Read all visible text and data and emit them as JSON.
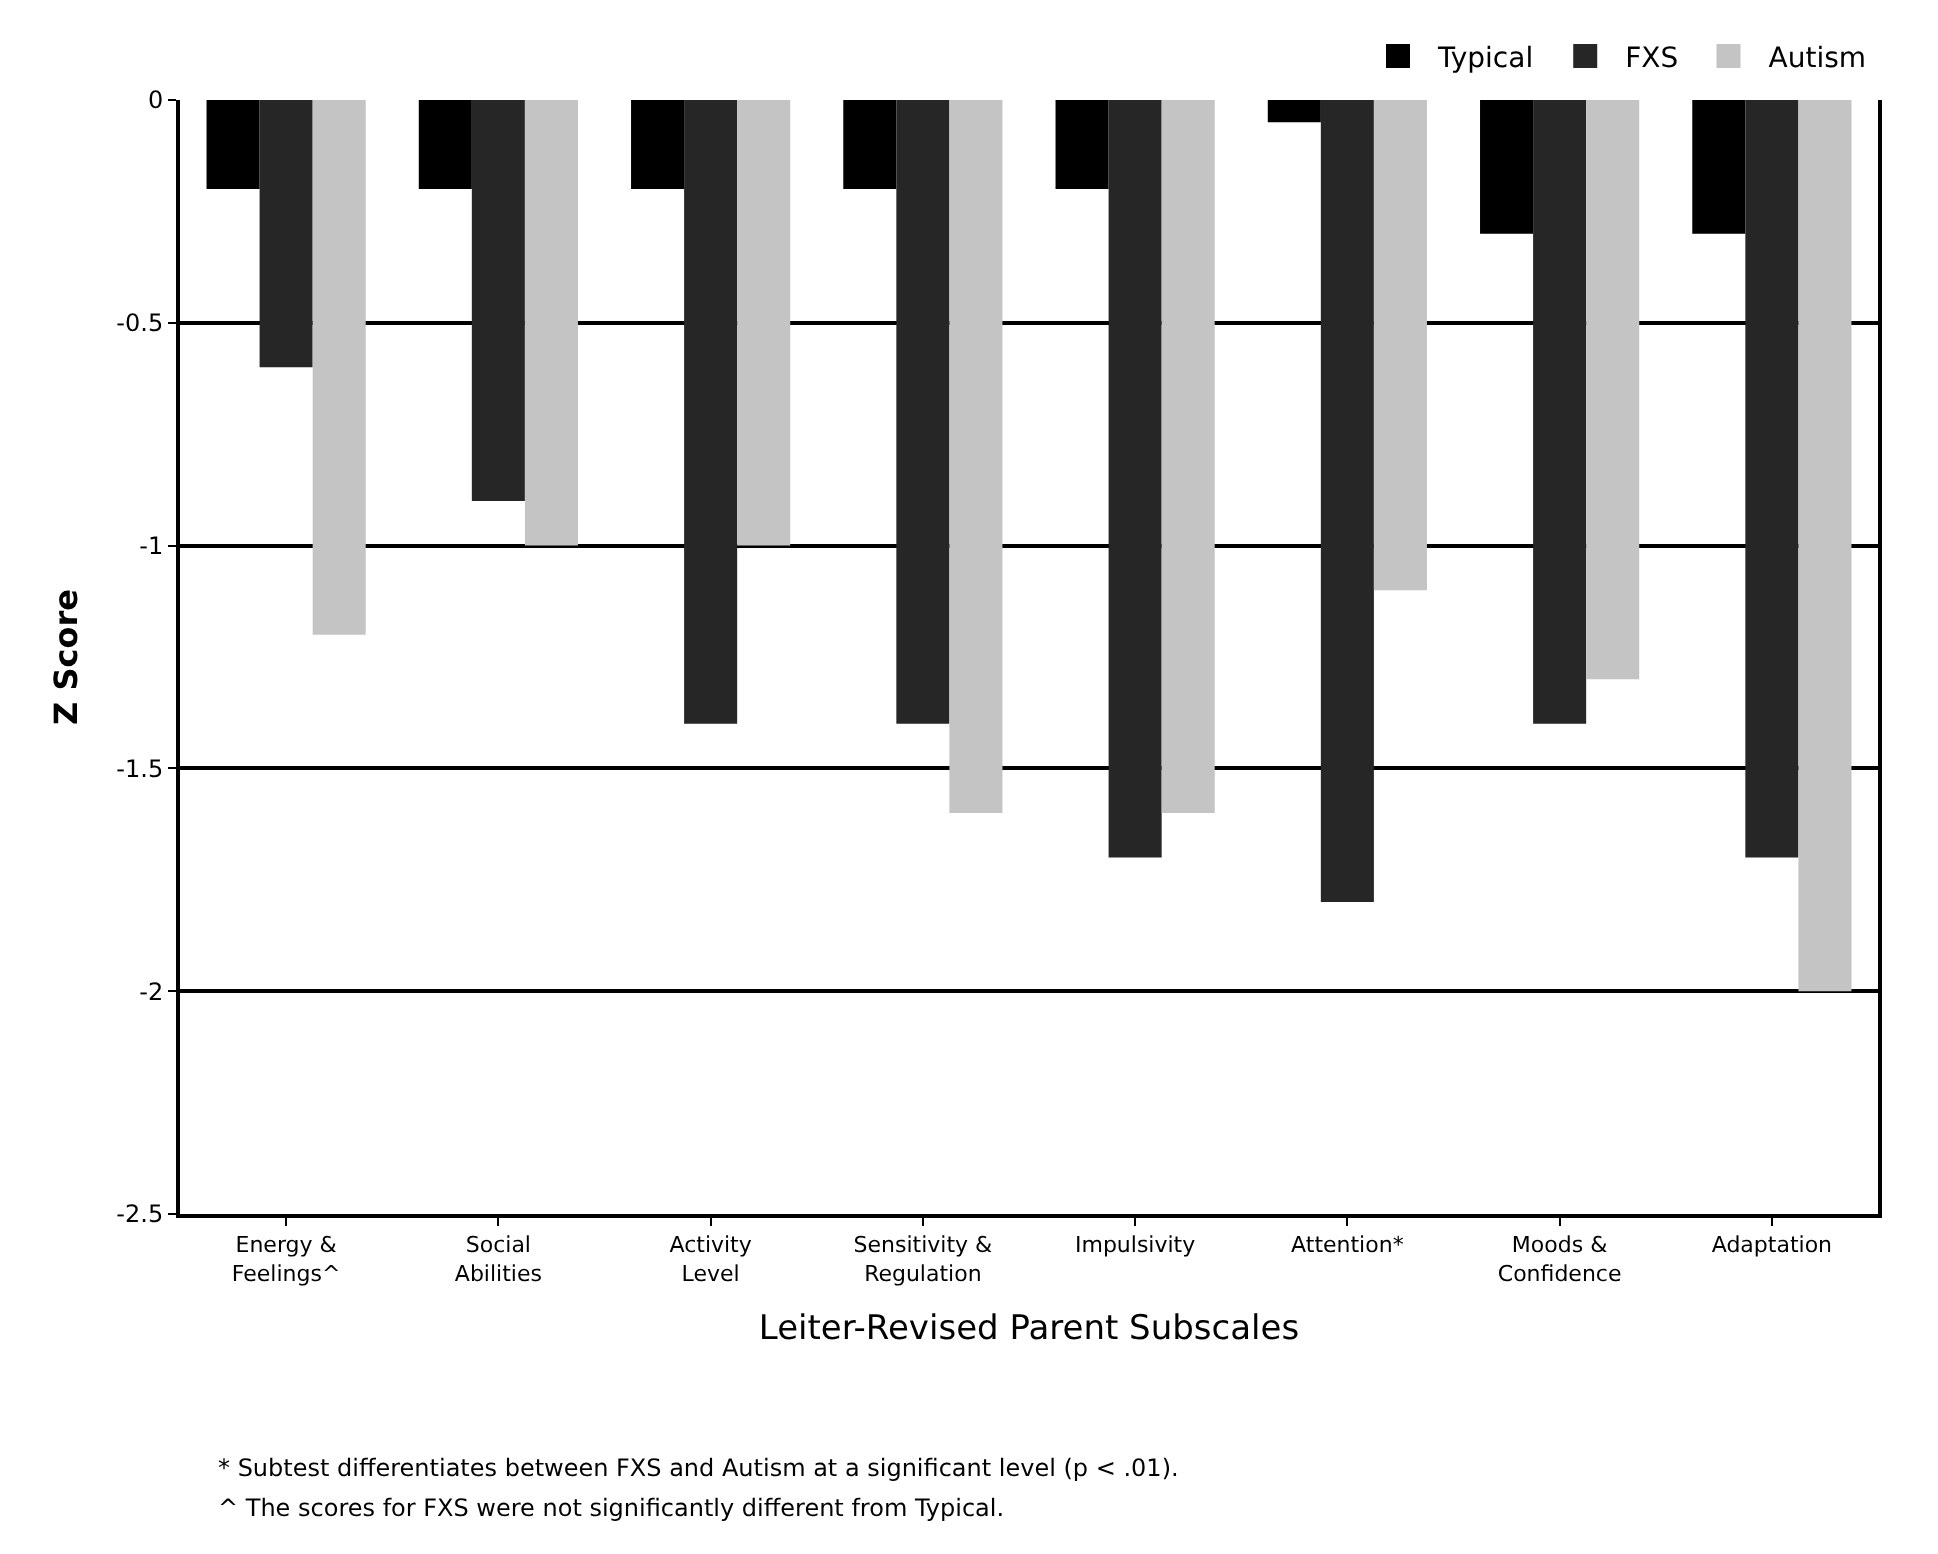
{
  "chart_data": {
    "type": "bar",
    "xlabel": "Leiter-Revised Parent Subscales",
    "ylabel": "Z Score",
    "categories": [
      "Energy &\nFeelings^",
      "Social\nAbilities",
      "Activity\nLevel",
      "Sensitivity &\nRegulation",
      "Impulsivity",
      "Attention*",
      "Moods &\nConfidence",
      "Adaptation"
    ],
    "series": [
      {
        "name": "Typical",
        "color": "#000000",
        "values": [
          -0.2,
          -0.2,
          -0.2,
          -0.2,
          -0.2,
          -0.05,
          -0.3,
          -0.3
        ]
      },
      {
        "name": "FXS",
        "color": "#262626",
        "values": [
          -0.6,
          -0.9,
          -1.4,
          -1.4,
          -1.7,
          -1.8,
          -1.4,
          -1.7
        ]
      },
      {
        "name": "Autism",
        "color": "#c4c4c4",
        "values": [
          -1.2,
          -1.0,
          -1.0,
          -1.6,
          -1.6,
          -1.1,
          -1.3,
          -2.0
        ]
      }
    ],
    "ylim": [
      -2.5,
      0
    ],
    "yticks": [
      {
        "value": 0,
        "label": "0"
      },
      -0.5,
      -1,
      -1.5,
      -2,
      -2.5
    ],
    "grid": "y",
    "legend": "top right",
    "annotations": [
      "* Subtest differentiates between FXS and Autism at a significant level (p < .01).",
      "^ The scores for FXS were not significantly different from Typical."
    ]
  }
}
